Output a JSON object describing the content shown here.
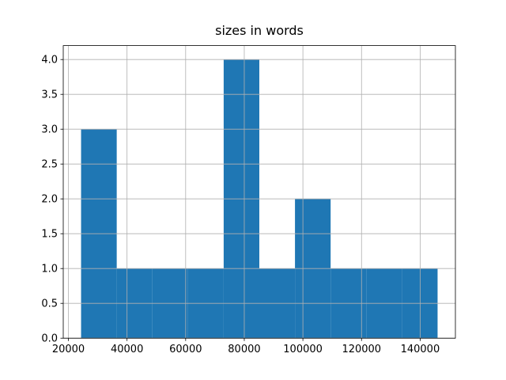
{
  "chart_data": {
    "type": "histogram",
    "title": "sizes in words",
    "bins": [
      24324,
      36486,
      48648,
      60810,
      72972,
      85134,
      97296,
      109458,
      121620,
      133782,
      145944
    ],
    "values": [
      3,
      1,
      1,
      1,
      4,
      1,
      2,
      1,
      1,
      1
    ],
    "color": "#1f77b4",
    "xlim": [
      18243,
      152025
    ],
    "xticks": [
      20000,
      40000,
      60000,
      80000,
      100000,
      120000,
      140000
    ],
    "ylim": [
      0,
      4.2
    ],
    "yticks": [
      {
        "value": 0,
        "label": "0.0"
      },
      {
        "value": 0.5,
        "label": "0.5"
      },
      {
        "value": 1,
        "label": "1.0"
      },
      {
        "value": 1.5,
        "label": "1.5"
      },
      {
        "value": 2,
        "label": "2.0"
      },
      {
        "value": 2.5,
        "label": "2.5"
      },
      {
        "value": 3,
        "label": "3.0"
      },
      {
        "value": 3.5,
        "label": "3.5"
      },
      {
        "value": 4,
        "label": "4.0"
      }
    ],
    "grid": true
  }
}
